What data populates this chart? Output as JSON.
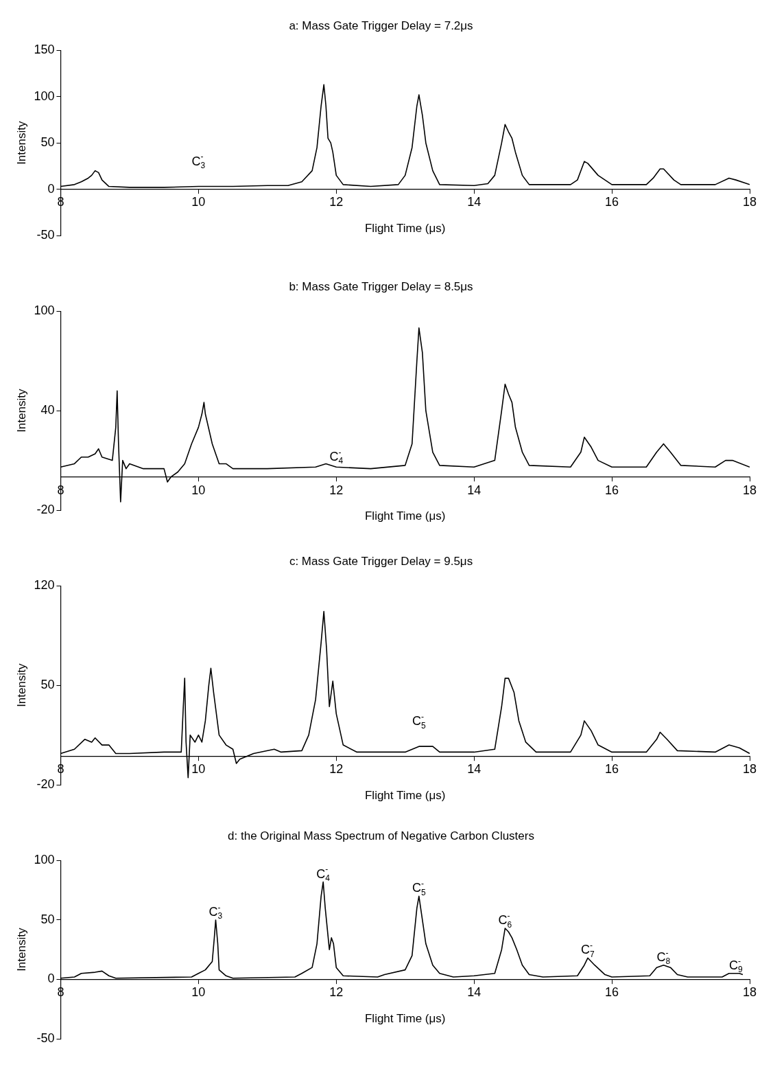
{
  "chart_data": [
    {
      "type": "line",
      "title": "a: Mass Gate Trigger Delay = 7.2μs",
      "xlabel": "Flight Time (μs)",
      "ylabel": "Intensity",
      "color": "#000000",
      "marker": "none",
      "line_style": "solid",
      "legend": false,
      "grid": false,
      "xlim": [
        8,
        18
      ],
      "xticks": [
        8,
        10,
        12,
        14,
        16,
        18
      ],
      "ylim": [
        -50,
        150
      ],
      "yticks": [
        -50,
        0,
        50,
        100,
        150
      ],
      "x": [
        8.0,
        8.2,
        8.3,
        8.4,
        8.45,
        8.5,
        8.55,
        8.6,
        8.7,
        9.0,
        9.5,
        10,
        10.5,
        11,
        11.3,
        11.5,
        11.65,
        11.72,
        11.78,
        11.82,
        11.85,
        11.88,
        11.92,
        11.95,
        12.0,
        12.1,
        12.5,
        12.9,
        13.0,
        13.1,
        13.17,
        13.2,
        13.25,
        13.3,
        13.4,
        13.5,
        14.0,
        14.2,
        14.3,
        14.4,
        14.45,
        14.5,
        14.55,
        14.6,
        14.7,
        14.8,
        15.4,
        15.5,
        15.6,
        15.65,
        15.8,
        16.0,
        16.5,
        16.6,
        16.7,
        16.75,
        16.9,
        17.0,
        17.5,
        17.7,
        17.8,
        18.0
      ],
      "values": [
        3,
        5,
        8,
        12,
        15,
        20,
        18,
        10,
        3,
        2,
        2,
        3,
        3,
        4,
        4,
        8,
        20,
        45,
        90,
        113,
        90,
        55,
        50,
        40,
        15,
        5,
        3,
        5,
        15,
        45,
        90,
        102,
        80,
        50,
        20,
        5,
        4,
        6,
        15,
        50,
        70,
        62,
        55,
        40,
        15,
        5,
        5,
        10,
        30,
        28,
        15,
        5,
        5,
        12,
        22,
        22,
        10,
        5,
        5,
        12,
        10,
        5
      ],
      "annotations": [
        "C$_{3}$$^{-}$"
      ]
    },
    {
      "type": "line",
      "title": "b: Mass Gate Trigger Delay = 8.5μs",
      "xlabel": "Flight Time (μs)",
      "ylabel": "Intensity",
      "color": "#000000",
      "marker": "none",
      "line_style": "solid",
      "legend": false,
      "grid": false,
      "xlim": [
        8,
        18
      ],
      "xticks": [
        8,
        10,
        12,
        14,
        16,
        18
      ],
      "ylim": [
        -20,
        100
      ],
      "yticks": [
        -20,
        40,
        100
      ],
      "x": [
        8.0,
        8.2,
        8.3,
        8.4,
        8.5,
        8.55,
        8.6,
        8.75,
        8.8,
        8.82,
        8.84,
        8.87,
        8.9,
        8.95,
        9.0,
        9.2,
        9.5,
        9.55,
        9.6,
        9.7,
        9.8,
        9.9,
        10.0,
        10.05,
        10.08,
        10.1,
        10.2,
        10.3,
        10.4,
        10.5,
        11.0,
        11.7,
        11.85,
        12.0,
        12.5,
        13.0,
        13.1,
        13.17,
        13.2,
        13.25,
        13.3,
        13.4,
        13.5,
        14.0,
        14.3,
        14.4,
        14.45,
        14.5,
        14.55,
        14.6,
        14.7,
        14.8,
        15.4,
        15.55,
        15.6,
        15.7,
        15.8,
        16.0,
        16.5,
        16.65,
        16.75,
        16.85,
        17.0,
        17.5,
        17.65,
        17.75,
        18.0
      ],
      "values": [
        6,
        8,
        12,
        12,
        14,
        17,
        12,
        10,
        30,
        52,
        20,
        -15,
        10,
        5,
        8,
        5,
        5,
        -3,
        0,
        3,
        8,
        20,
        30,
        38,
        45,
        38,
        20,
        8,
        8,
        5,
        5,
        6,
        8,
        6,
        5,
        7,
        20,
        70,
        90,
        75,
        40,
        15,
        7,
        6,
        10,
        40,
        56,
        50,
        45,
        30,
        15,
        7,
        6,
        15,
        24,
        18,
        10,
        6,
        6,
        15,
        20,
        15,
        7,
        6,
        10,
        10,
        6
      ],
      "annotations": [
        "C$_{4}$$^{-}$"
      ]
    },
    {
      "type": "line",
      "title": "c: Mass Gate Trigger Delay = 9.5μs",
      "xlabel": "Flight Time (μs)",
      "ylabel": "Intensity",
      "color": "#000000",
      "marker": "none",
      "line_style": "solid",
      "legend": false,
      "grid": false,
      "xlim": [
        8,
        18
      ],
      "xticks": [
        8,
        10,
        12,
        14,
        16,
        18
      ],
      "ylim": [
        -20,
        120
      ],
      "yticks": [
        -20,
        50,
        120
      ],
      "x": [
        8.0,
        8.2,
        8.35,
        8.45,
        8.5,
        8.6,
        8.7,
        8.8,
        9.0,
        9.5,
        9.75,
        9.78,
        9.8,
        9.82,
        9.85,
        9.88,
        9.95,
        10.0,
        10.05,
        10.1,
        10.15,
        10.18,
        10.22,
        10.3,
        10.4,
        10.5,
        10.55,
        10.6,
        10.8,
        11.1,
        11.2,
        11.5,
        11.6,
        11.7,
        11.78,
        11.82,
        11.86,
        11.9,
        11.95,
        12.0,
        12.1,
        12.3,
        13.0,
        13.2,
        13.4,
        13.5,
        14.0,
        14.3,
        14.4,
        14.45,
        14.5,
        14.58,
        14.65,
        14.75,
        14.9,
        15.4,
        15.55,
        15.6,
        15.7,
        15.8,
        16.0,
        16.5,
        16.65,
        16.7,
        16.8,
        16.95,
        17.5,
        17.7,
        17.85,
        18.0
      ],
      "values": [
        2,
        5,
        12,
        10,
        13,
        8,
        8,
        2,
        2,
        3,
        3,
        35,
        55,
        10,
        -15,
        15,
        10,
        15,
        10,
        25,
        50,
        62,
        45,
        15,
        8,
        5,
        -5,
        -2,
        2,
        5,
        3,
        4,
        15,
        40,
        80,
        102,
        75,
        35,
        53,
        30,
        8,
        3,
        3,
        7,
        7,
        3,
        3,
        5,
        35,
        55,
        55,
        45,
        25,
        10,
        3,
        3,
        15,
        25,
        18,
        8,
        3,
        3,
        12,
        17,
        12,
        4,
        3,
        8,
        6,
        2
      ],
      "annotations": [
        "C$_{5}$$^{-}$"
      ]
    },
    {
      "type": "line",
      "title": "d: the Original Mass Spectrum of Negative Carbon Clusters",
      "xlabel": "Flight Time (μs)",
      "ylabel": "Intensity",
      "color": "#000000",
      "marker": "none",
      "line_style": "solid",
      "legend": false,
      "grid": false,
      "xlim": [
        8,
        18
      ],
      "xticks": [
        8,
        10,
        12,
        14,
        16,
        18
      ],
      "ylim": [
        -50,
        100
      ],
      "yticks": [
        -50,
        0,
        50,
        100
      ],
      "x": [
        8.0,
        8.2,
        8.3,
        8.5,
        8.6,
        8.7,
        8.8,
        9.9,
        10.0,
        10.1,
        10.2,
        10.23,
        10.25,
        10.28,
        10.3,
        10.4,
        10.5,
        11.4,
        11.5,
        11.65,
        11.72,
        11.78,
        11.81,
        11.84,
        11.9,
        11.93,
        11.96,
        12.0,
        12.1,
        12.6,
        12.7,
        13.0,
        13.1,
        13.17,
        13.2,
        13.25,
        13.3,
        13.4,
        13.5,
        13.7,
        14.0,
        14.3,
        14.4,
        14.45,
        14.5,
        14.55,
        14.62,
        14.7,
        14.8,
        15.0,
        15.5,
        15.6,
        15.65,
        15.75,
        15.9,
        16.0,
        16.55,
        16.65,
        16.75,
        16.85,
        16.95,
        17.1,
        17.6,
        17.7,
        17.85,
        17.9
      ],
      "values": [
        1,
        2,
        5,
        6,
        7,
        3,
        1,
        2,
        5,
        8,
        15,
        35,
        50,
        30,
        8,
        3,
        1,
        2,
        5,
        10,
        30,
        70,
        82,
        60,
        25,
        35,
        30,
        10,
        3,
        2,
        4,
        8,
        20,
        60,
        70,
        50,
        30,
        12,
        5,
        2,
        3,
        5,
        25,
        43,
        40,
        35,
        25,
        12,
        4,
        2,
        3,
        12,
        18,
        12,
        4,
        2,
        3,
        10,
        12,
        10,
        4,
        2,
        2,
        5,
        5,
        4
      ],
      "annotations": [
        {
          "text": "C$_{3}$$^{-}$",
          "x": 10.25,
          "y": 50
        },
        {
          "text": "C$_{4}$$^{-}$",
          "x": 11.81,
          "y": 82
        },
        {
          "text": "C$_{5}$$^{-}$",
          "x": 13.2,
          "y": 70
        },
        {
          "text": "C$_{6}$$^{-}$",
          "x": 14.45,
          "y": 43
        },
        {
          "text": "C$_{7}$$^{-}$",
          "x": 15.65,
          "y": 18
        },
        {
          "text": "C$_{8}$$^{-}$",
          "x": 16.75,
          "y": 12
        },
        {
          "text": "C$_{9}$$^{-}$",
          "x": 17.8,
          "y": 5
        }
      ]
    }
  ]
}
